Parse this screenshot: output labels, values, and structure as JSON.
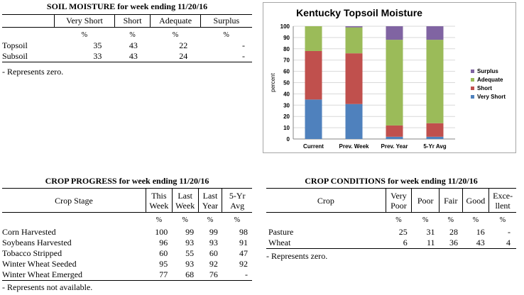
{
  "soil": {
    "title": "SOIL MOISTURE for week ending 11/20/16",
    "columns": [
      "",
      "Very Short",
      "Short",
      "Adequate",
      "Surplus"
    ],
    "units": [
      "",
      "%",
      "%",
      "%",
      "%"
    ],
    "rows": [
      [
        "Topsoil",
        "35",
        "43",
        "22",
        "-"
      ],
      [
        "Subsoil",
        "33",
        "43",
        "24",
        "-"
      ]
    ],
    "note": "- Represents zero."
  },
  "chart_data": {
    "type": "bar",
    "stacked": true,
    "title": "Kentucky Topsoil Moisture",
    "ylabel": "percent",
    "ylim": [
      0,
      100
    ],
    "yticks": [
      "0",
      "10",
      "20",
      "30",
      "40",
      "50",
      "60",
      "70",
      "80",
      "90",
      "100"
    ],
    "categories": [
      "Current",
      "Prev. Week",
      "Prev. Year",
      "5-Yr Avg"
    ],
    "series": [
      {
        "name": "Very Short",
        "color": "#4f81bd",
        "values": [
          35,
          31,
          2,
          2
        ]
      },
      {
        "name": "Short",
        "color": "#c0504d",
        "values": [
          43,
          45,
          10,
          12
        ]
      },
      {
        "name": "Adequate",
        "color": "#9bbb59",
        "values": [
          22,
          23,
          76,
          74
        ]
      },
      {
        "name": "Surplus",
        "color": "#8064a2",
        "values": [
          0,
          1,
          12,
          12
        ]
      }
    ],
    "legend": "right",
    "grid": true
  },
  "progress": {
    "title": "CROP PROGRESS for week ending 11/20/16",
    "columns": [
      {
        "l1": "Crop Stage",
        "l2": ""
      },
      {
        "l1": "This",
        "l2": "Week"
      },
      {
        "l1": "Last",
        "l2": "Week"
      },
      {
        "l1": "Last",
        "l2": "Year"
      },
      {
        "l1": "5-Yr",
        "l2": "Avg"
      }
    ],
    "units": [
      "",
      "%",
      "%",
      "%",
      "%"
    ],
    "rows": [
      [
        "Corn Harvested",
        "100",
        "99",
        "99",
        "98"
      ],
      [
        "Soybeans Harvested",
        "96",
        "93",
        "93",
        "91"
      ],
      [
        "Tobacco Stripped",
        "60",
        "55",
        "60",
        "47"
      ],
      [
        "Winter Wheat Seeded",
        "95",
        "93",
        "92",
        "92"
      ],
      [
        "Winter Wheat Emerged",
        "77",
        "68",
        "76",
        "-"
      ]
    ],
    "note": "- Represents not available."
  },
  "conditions": {
    "title": "CROP CONDITIONS for week ending 11/20/16",
    "columns": [
      {
        "l1": "Crop",
        "l2": ""
      },
      {
        "l1": "Very",
        "l2": "Poor"
      },
      {
        "l1": "Poor",
        "l2": ""
      },
      {
        "l1": "Fair",
        "l2": ""
      },
      {
        "l1": "Good",
        "l2": ""
      },
      {
        "l1": "Exce-",
        "l2": "llent"
      }
    ],
    "units": [
      "",
      "%",
      "%",
      "%",
      "%",
      "%"
    ],
    "rows": [
      [
        "Pasture",
        "25",
        "31",
        "28",
        "16",
        "-"
      ],
      [
        "Wheat",
        "6",
        "11",
        "36",
        "43",
        "4"
      ]
    ],
    "note": "- Represents zero."
  }
}
